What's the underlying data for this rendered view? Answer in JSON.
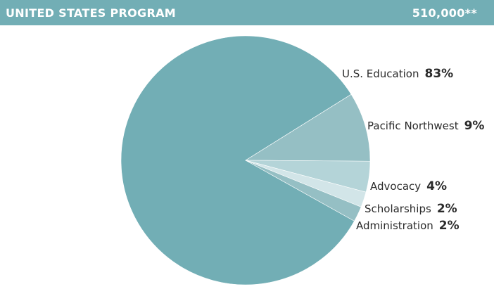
{
  "header": {
    "title": "UNITED STATES PROGRAM",
    "total": "510,000**",
    "bg_color": "#72aeb5"
  },
  "chart_data": {
    "type": "pie",
    "slices": [
      {
        "label": "U.S. Education",
        "value": 83,
        "display": "83%",
        "color": "#72aeb5"
      },
      {
        "label": "Pacific Northwest",
        "value": 9,
        "display": "9%",
        "color": "#95bfc4"
      },
      {
        "label": "Advocacy",
        "value": 4,
        "display": "4%",
        "color": "#b4d4d8"
      },
      {
        "label": "Scholarships",
        "value": 2,
        "display": "2%",
        "color": "#d2e5e8"
      },
      {
        "label": "Administration",
        "value": 2,
        "display": "2%",
        "color": "#95bfc4"
      }
    ]
  }
}
